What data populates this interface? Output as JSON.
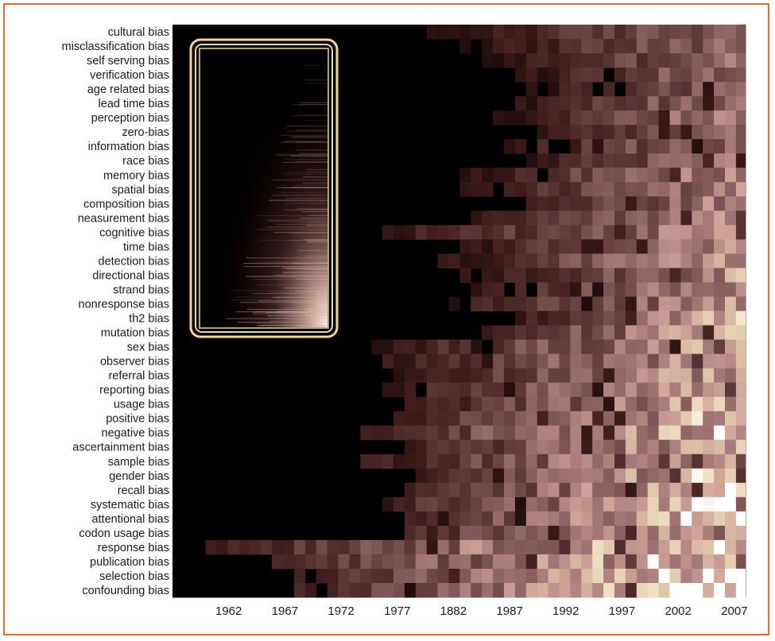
{
  "chart_data": {
    "type": "heatmap",
    "title": "",
    "xlabel": "",
    "ylabel": "",
    "colormap": "pink",
    "colors": {
      "frame_border": "#e8692e",
      "highlight_box": "#f0d890",
      "background": "#ffffff"
    },
    "x_tick_labels": [
      "1962",
      "1967",
      "1972",
      "1977",
      "1882",
      "1987",
      "1992",
      "1997",
      "2002",
      "2007"
    ],
    "x_range": [
      1957,
      2008
    ],
    "rows": [
      "cultural bias",
      "misclassification bias",
      "self serving bias",
      "verification bias",
      "age related bias",
      "lead time bias",
      "perception bias",
      "zero-bias",
      "information bias",
      "race bias",
      "memory bias",
      "spatial bias",
      "composition bias",
      "neasurement bias",
      "cognitive bias",
      "time bias",
      "detection bias",
      "directional bias",
      "strand bias",
      "nonresponse bias",
      "th2 bias",
      "mutation bias",
      "sex bias",
      "observer bias",
      "referral bias",
      "reporting bias",
      "usage bias",
      "positive bias",
      "negative bias",
      "ascertainment bias",
      "sample bias",
      "gender bias",
      "recall bias",
      "systematic bias",
      "attentional bias",
      "codon usage bias",
      "response bias",
      "publication bias",
      "selection bias",
      "confounding bias"
    ],
    "row_onset_year": [
      1980,
      1982,
      1985,
      1987,
      1988,
      1987,
      1986,
      1989,
      1986,
      1987,
      1983,
      1983,
      1988,
      1984,
      1975,
      1983,
      1981,
      1983,
      1984,
      1982,
      1987,
      1984,
      1975,
      1976,
      1977,
      1976,
      1978,
      1976,
      1974,
      1976,
      1974,
      1978,
      1978,
      1976,
      1978,
      1977,
      1960,
      1966,
      1968,
      1968
    ],
    "row_max_intensity": [
      0.45,
      0.45,
      0.5,
      0.5,
      0.5,
      0.55,
      0.6,
      0.55,
      0.55,
      0.55,
      0.6,
      0.62,
      0.62,
      0.62,
      0.62,
      0.64,
      0.64,
      0.66,
      0.66,
      0.7,
      0.78,
      0.8,
      0.72,
      0.74,
      0.75,
      0.76,
      0.8,
      0.84,
      0.88,
      0.82,
      0.86,
      0.9,
      0.95,
      0.95,
      1.0,
      1.0,
      0.95,
      1.0,
      1.0,
      1.0
    ],
    "highlight": {
      "x_from": 1960,
      "x_to": 1975,
      "rows_from": "misclassification bias",
      "rows_to": "th2 bias"
    },
    "grid": false,
    "legend": "none"
  }
}
